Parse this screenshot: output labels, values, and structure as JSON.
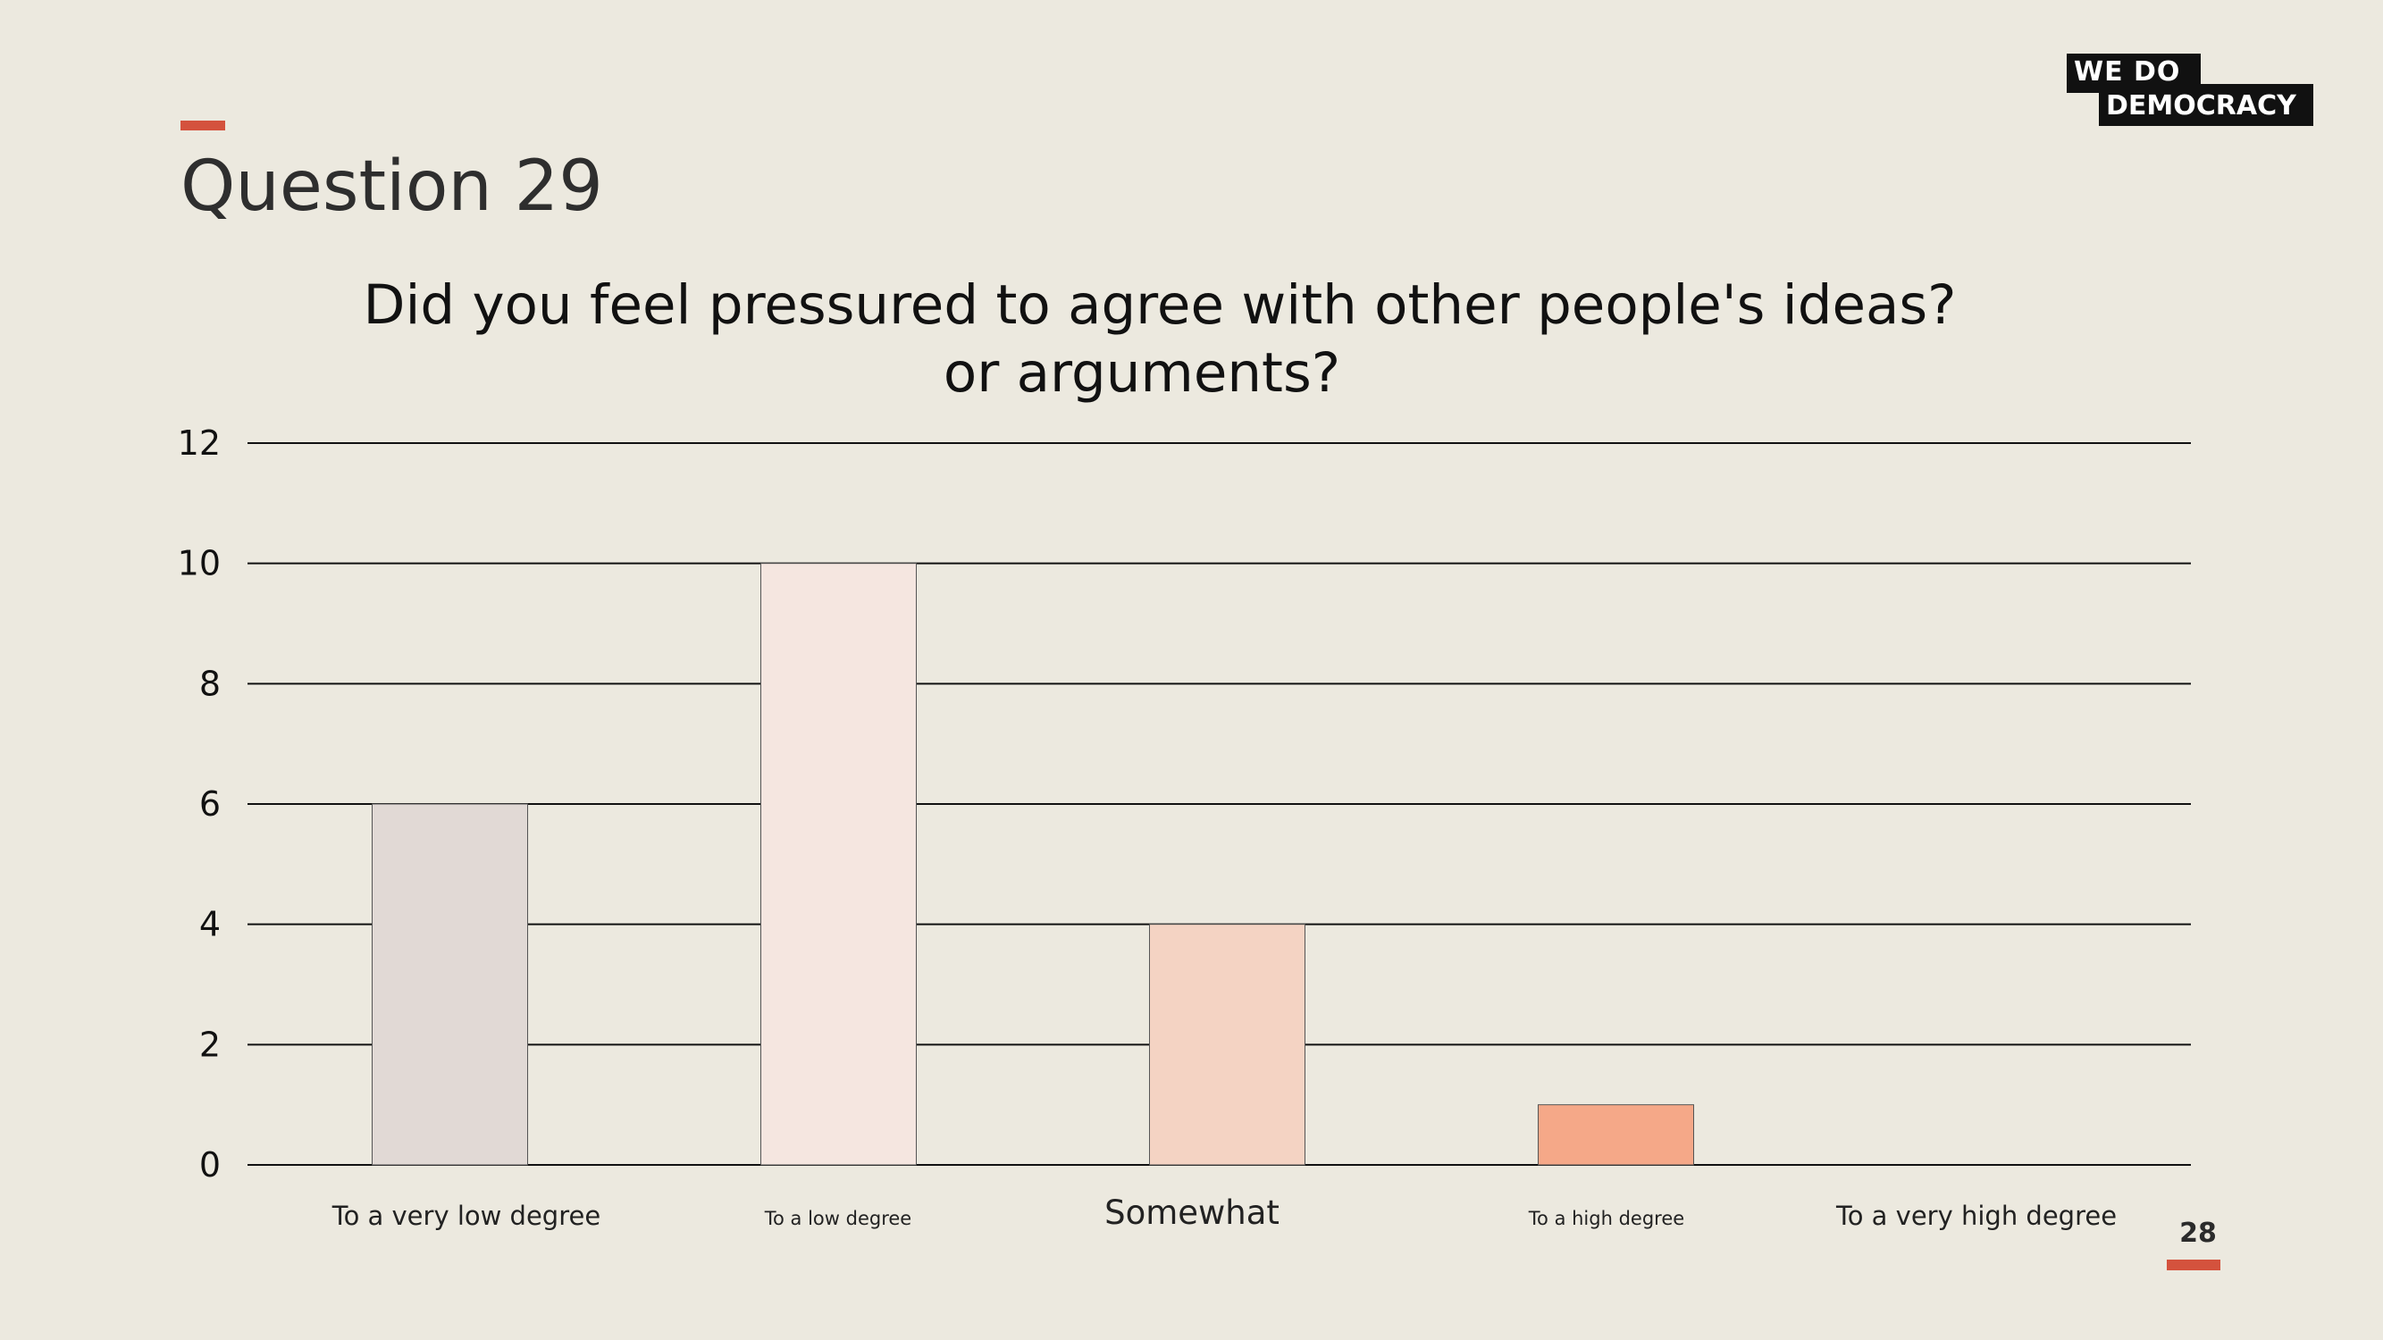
{
  "slide": {
    "title": "Question 29",
    "page_number": "28",
    "accent_color": "#d4523d",
    "background_color": "#ece9df"
  },
  "logo": {
    "line1": "WE DO",
    "line2": "DEMOCRACY"
  },
  "chart_data": {
    "type": "bar",
    "title_lines": [
      "Did you feel pressured to agree with other people's ideas?",
      "or arguments?"
    ],
    "categories": [
      "To a very low degree",
      "To a low degree",
      "Somewhat",
      "To a high degree",
      "To a very high degree"
    ],
    "values": [
      6,
      10,
      4,
      1,
      0
    ],
    "colors": [
      "#e1d9d5",
      "#f5e6e0",
      "#f4d3c3",
      "#f5a888",
      "#f3c7b2"
    ],
    "ylim": [
      0,
      12
    ],
    "yticks": [
      0,
      2,
      4,
      6,
      8,
      10,
      12
    ],
    "grid": true,
    "legend": "none"
  }
}
